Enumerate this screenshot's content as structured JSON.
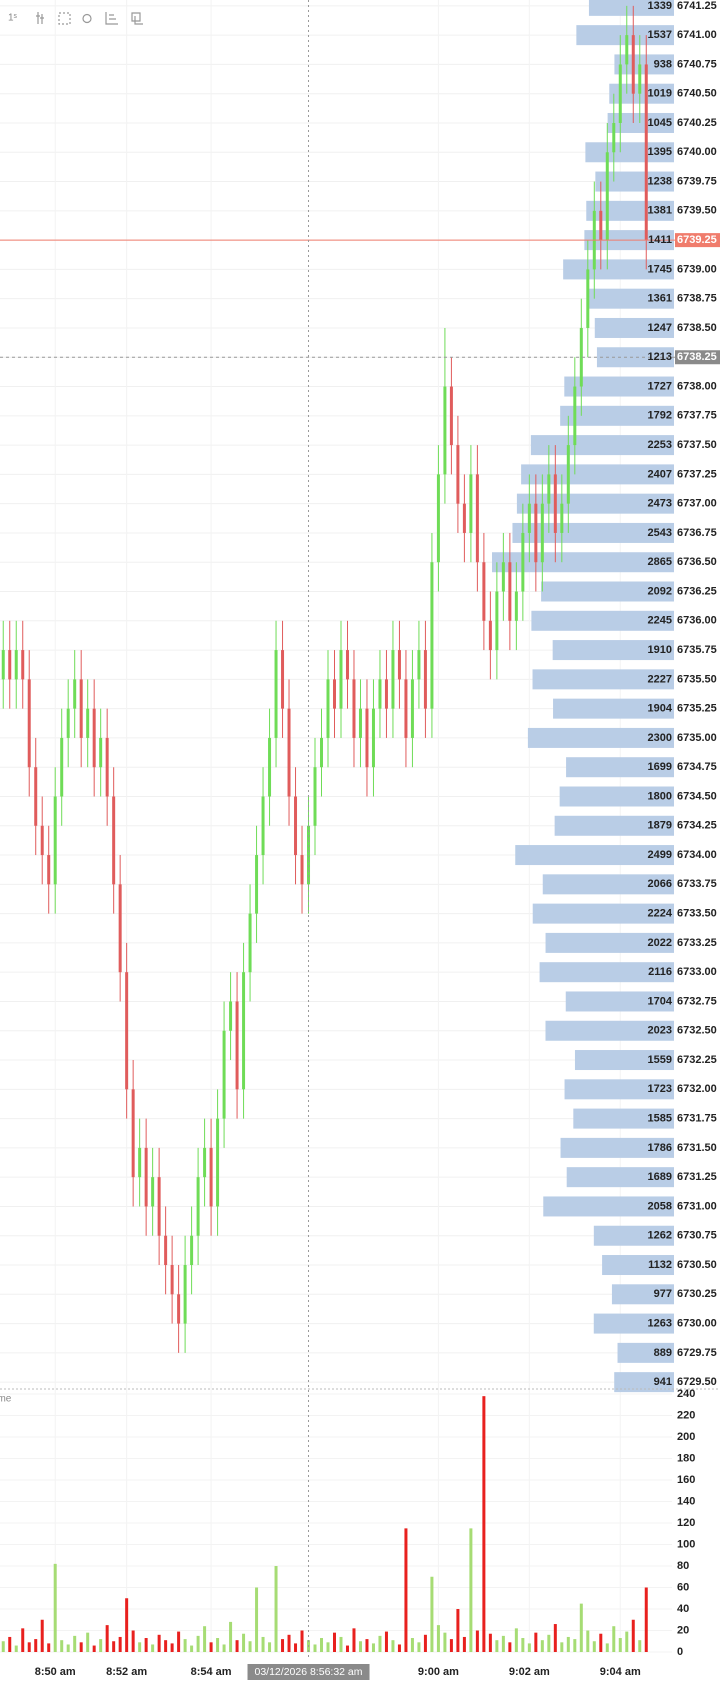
{
  "chart_data": {
    "type": "candlestick",
    "interval": "1ˢ",
    "up_color": "#6fdc57",
    "down_color": "#e05c5c",
    "candles": [
      [
        6735.5,
        6736.0,
        6735.25,
        6735.75
      ],
      [
        6735.75,
        6736.0,
        6735.25,
        6735.5
      ],
      [
        6735.5,
        6736.0,
        6735.25,
        6735.75
      ],
      [
        6735.75,
        6736.0,
        6735.25,
        6735.5
      ],
      [
        6735.5,
        6735.75,
        6734.5,
        6734.75
      ],
      [
        6734.75,
        6735.0,
        6734.0,
        6734.25
      ],
      [
        6734.25,
        6734.5,
        6733.75,
        6734.0
      ],
      [
        6734.0,
        6734.25,
        6733.5,
        6733.75
      ],
      [
        6733.75,
        6734.75,
        6733.5,
        6734.5
      ],
      [
        6734.5,
        6735.25,
        6734.25,
        6735.0
      ],
      [
        6735.0,
        6735.5,
        6734.75,
        6735.25
      ],
      [
        6735.25,
        6735.75,
        6735.0,
        6735.5
      ],
      [
        6735.5,
        6735.75,
        6734.75,
        6735.0
      ],
      [
        6735.0,
        6735.5,
        6734.75,
        6735.25
      ],
      [
        6735.25,
        6735.5,
        6734.5,
        6734.75
      ],
      [
        6734.75,
        6735.25,
        6734.5,
        6735.0
      ],
      [
        6735.0,
        6735.25,
        6734.25,
        6734.5
      ],
      [
        6734.5,
        6734.75,
        6733.5,
        6733.75
      ],
      [
        6733.75,
        6734.0,
        6732.75,
        6733.0
      ],
      [
        6733.0,
        6733.25,
        6731.75,
        6732.0
      ],
      [
        6732.0,
        6732.25,
        6731.0,
        6731.25
      ],
      [
        6731.25,
        6731.75,
        6731.0,
        6731.5
      ],
      [
        6731.5,
        6731.75,
        6730.75,
        6731.0
      ],
      [
        6731.0,
        6731.5,
        6730.75,
        6731.25
      ],
      [
        6731.25,
        6731.5,
        6730.5,
        6730.75
      ],
      [
        6730.75,
        6731.0,
        6730.25,
        6730.5
      ],
      [
        6730.5,
        6730.75,
        6730.0,
        6730.25
      ],
      [
        6730.25,
        6730.5,
        6729.75,
        6730.0
      ],
      [
        6730.0,
        6730.75,
        6729.75,
        6730.5
      ],
      [
        6730.5,
        6731.0,
        6730.25,
        6730.75
      ],
      [
        6730.75,
        6731.5,
        6730.5,
        6731.25
      ],
      [
        6731.25,
        6731.75,
        6731.0,
        6731.5
      ],
      [
        6731.5,
        6731.75,
        6730.75,
        6731.0
      ],
      [
        6731.0,
        6732.0,
        6730.75,
        6731.75
      ],
      [
        6731.75,
        6732.75,
        6731.5,
        6732.5
      ],
      [
        6732.5,
        6733.0,
        6732.25,
        6732.75
      ],
      [
        6732.75,
        6733.0,
        6731.75,
        6732.0
      ],
      [
        6732.0,
        6733.25,
        6731.75,
        6733.0
      ],
      [
        6733.0,
        6733.75,
        6732.75,
        6733.5
      ],
      [
        6733.5,
        6734.25,
        6733.25,
        6734.0
      ],
      [
        6734.0,
        6734.75,
        6733.75,
        6734.5
      ],
      [
        6734.5,
        6735.25,
        6734.25,
        6735.0
      ],
      [
        6735.0,
        6736.0,
        6734.75,
        6735.75
      ],
      [
        6735.75,
        6736.0,
        6735.0,
        6735.25
      ],
      [
        6735.25,
        6735.5,
        6734.25,
        6734.5
      ],
      [
        6734.5,
        6734.75,
        6733.75,
        6734.0
      ],
      [
        6734.0,
        6734.25,
        6733.5,
        6733.75
      ],
      [
        6733.75,
        6734.5,
        6733.5,
        6734.25
      ],
      [
        6734.25,
        6735.0,
        6734.0,
        6734.75
      ],
      [
        6734.75,
        6735.25,
        6734.5,
        6735.0
      ],
      [
        6735.0,
        6735.75,
        6734.75,
        6735.5
      ],
      [
        6735.5,
        6735.75,
        6735.0,
        6735.25
      ],
      [
        6735.25,
        6736.0,
        6735.0,
        6735.75
      ],
      [
        6735.75,
        6736.0,
        6735.25,
        6735.5
      ],
      [
        6735.5,
        6735.75,
        6734.75,
        6735.0
      ],
      [
        6735.0,
        6735.5,
        6734.75,
        6735.25
      ],
      [
        6735.25,
        6735.5,
        6734.5,
        6734.75
      ],
      [
        6734.75,
        6735.5,
        6734.5,
        6735.25
      ],
      [
        6735.25,
        6735.75,
        6735.0,
        6735.5
      ],
      [
        6735.5,
        6735.75,
        6735.0,
        6735.25
      ],
      [
        6735.25,
        6736.0,
        6735.0,
        6735.75
      ],
      [
        6735.75,
        6736.0,
        6735.25,
        6735.5
      ],
      [
        6735.5,
        6735.75,
        6734.75,
        6735.0
      ],
      [
        6735.0,
        6735.75,
        6734.75,
        6735.5
      ],
      [
        6735.5,
        6736.0,
        6735.25,
        6735.75
      ],
      [
        6735.75,
        6736.0,
        6735.0,
        6735.25
      ],
      [
        6735.25,
        6736.75,
        6735.0,
        6736.5
      ],
      [
        6736.5,
        6737.5,
        6736.25,
        6737.25
      ],
      [
        6737.25,
        6738.5,
        6737.0,
        6738.0
      ],
      [
        6738.0,
        6738.25,
        6737.25,
        6737.5
      ],
      [
        6737.5,
        6737.75,
        6736.75,
        6737.0
      ],
      [
        6737.0,
        6737.25,
        6736.5,
        6736.75
      ],
      [
        6736.75,
        6737.5,
        6736.5,
        6737.25
      ],
      [
        6737.25,
        6737.5,
        6736.25,
        6736.5
      ],
      [
        6736.5,
        6736.75,
        6735.75,
        6736.0
      ],
      [
        6736.0,
        6736.25,
        6735.5,
        6735.75
      ],
      [
        6735.75,
        6736.5,
        6735.5,
        6736.25
      ],
      [
        6736.25,
        6736.75,
        6736.0,
        6736.5
      ],
      [
        6736.5,
        6736.75,
        6735.75,
        6736.0
      ],
      [
        6736.0,
        6736.5,
        6735.75,
        6736.25
      ],
      [
        6736.25,
        6737.0,
        6736.0,
        6736.75
      ],
      [
        6736.75,
        6737.25,
        6736.5,
        6737.0
      ],
      [
        6737.0,
        6737.25,
        6736.25,
        6736.5
      ],
      [
        6736.5,
        6737.25,
        6736.25,
        6737.0
      ],
      [
        6737.0,
        6737.5,
        6736.75,
        6737.25
      ],
      [
        6737.25,
        6737.5,
        6736.5,
        6736.75
      ],
      [
        6736.75,
        6737.25,
        6736.5,
        6737.0
      ],
      [
        6737.0,
        6737.75,
        6736.75,
        6737.5
      ],
      [
        6737.5,
        6738.25,
        6737.25,
        6738.0
      ],
      [
        6738.0,
        6738.75,
        6737.75,
        6738.5
      ],
      [
        6738.5,
        6739.25,
        6738.25,
        6739.0
      ],
      [
        6739.0,
        6739.75,
        6738.75,
        6739.5
      ],
      [
        6739.5,
        6739.75,
        6739.0,
        6739.25
      ],
      [
        6739.25,
        6740.25,
        6739.0,
        6740.0
      ],
      [
        6740.0,
        6740.5,
        6739.75,
        6740.25
      ],
      [
        6740.25,
        6741.0,
        6740.0,
        6740.75
      ],
      [
        6740.75,
        6741.25,
        6740.5,
        6741.0
      ],
      [
        6741.0,
        6741.25,
        6740.25,
        6740.5
      ],
      [
        6740.5,
        6741.0,
        6740.25,
        6740.75
      ],
      [
        6740.75,
        6741.0,
        6739.0,
        6739.25
      ]
    ],
    "xlim": [
      -0.5,
      100.5
    ],
    "xticks": [
      {
        "value": 8,
        "label": "8:50 am"
      },
      {
        "value": 19,
        "label": "8:52 am"
      },
      {
        "value": 32,
        "label": "8:54 am"
      },
      {
        "value": 67,
        "label": "9:00 am"
      },
      {
        "value": 81,
        "label": "9:02 am"
      },
      {
        "value": 95,
        "label": "9:04 am"
      }
    ],
    "crosshair": {
      "value": 47,
      "label": "03/12/2026 8:56:32 am",
      "price": 6738.25
    },
    "last_price": 6739.25,
    "ylim": [
      6729.45,
      6741.3
    ],
    "yticks": [
      {
        "value": 6741.25,
        "label": "6741.25"
      },
      {
        "value": 6741,
        "label": "6741.00"
      },
      {
        "value": 6740.75,
        "label": "6740.75"
      },
      {
        "value": 6740.5,
        "label": "6740.50"
      },
      {
        "value": 6740.25,
        "label": "6740.25"
      },
      {
        "value": 6740,
        "label": "6740.00"
      },
      {
        "value": 6739.75,
        "label": "6739.75"
      },
      {
        "value": 6739.5,
        "label": "6739.50"
      },
      {
        "value": 6739.25,
        "label": "6739.25"
      },
      {
        "value": 6739,
        "label": "6739.00"
      },
      {
        "value": 6738.75,
        "label": "6738.75"
      },
      {
        "value": 6738.5,
        "label": "6738.50"
      },
      {
        "value": 6738.25,
        "label": "6738.25"
      },
      {
        "value": 6738,
        "label": "6738.00"
      },
      {
        "value": 6737.75,
        "label": "6737.75"
      },
      {
        "value": 6737.5,
        "label": "6737.50"
      },
      {
        "value": 6737.25,
        "label": "6737.25"
      },
      {
        "value": 6737,
        "label": "6737.00"
      },
      {
        "value": 6736.75,
        "label": "6736.75"
      },
      {
        "value": 6736.5,
        "label": "6736.50"
      },
      {
        "value": 6736.25,
        "label": "6736.25"
      },
      {
        "value": 6736,
        "label": "6736.00"
      },
      {
        "value": 6735.75,
        "label": "6735.75"
      },
      {
        "value": 6735.5,
        "label": "6735.50"
      },
      {
        "value": 6735.25,
        "label": "6735.25"
      },
      {
        "value": 6735,
        "label": "6735.00"
      },
      {
        "value": 6734.75,
        "label": "6734.75"
      },
      {
        "value": 6734.5,
        "label": "6734.50"
      },
      {
        "value": 6734.25,
        "label": "6734.25"
      },
      {
        "value": 6734,
        "label": "6734.00"
      },
      {
        "value": 6733.75,
        "label": "6733.75"
      },
      {
        "value": 6733.5,
        "label": "6733.50"
      },
      {
        "value": 6733.25,
        "label": "6733.25"
      },
      {
        "value": 6733,
        "label": "6733.00"
      },
      {
        "value": 6732.75,
        "label": "6732.75"
      },
      {
        "value": 6732.5,
        "label": "6732.50"
      },
      {
        "value": 6732.25,
        "label": "6732.25"
      },
      {
        "value": 6732,
        "label": "6732.00"
      },
      {
        "value": 6731.75,
        "label": "6731.75"
      },
      {
        "value": 6731.5,
        "label": "6731.50"
      },
      {
        "value": 6731.25,
        "label": "6731.25"
      },
      {
        "value": 6731,
        "label": "6731.00"
      },
      {
        "value": 6730.75,
        "label": "6730.75"
      },
      {
        "value": 6730.5,
        "label": "6730.50"
      },
      {
        "value": 6730.25,
        "label": "6730.25"
      },
      {
        "value": 6730,
        "label": "6730.00"
      },
      {
        "value": 6729.75,
        "label": "6729.75"
      },
      {
        "value": 6729.5,
        "label": "6729.50"
      }
    ],
    "volume_profile": {
      "color": "#b9cde6",
      "values": [
        1339,
        1537,
        938,
        1019,
        1045,
        1395,
        1238,
        1381,
        1411,
        1745,
        1361,
        1247,
        1213,
        1727,
        1792,
        2253,
        2407,
        2473,
        2543,
        2865,
        2092,
        2245,
        1910,
        2227,
        1904,
        2300,
        1699,
        1800,
        1879,
        2499,
        2066,
        2224,
        2022,
        2116,
        1704,
        2023,
        1559,
        1723,
        1585,
        1786,
        1689,
        2058,
        1262,
        1132,
        977,
        1263,
        889,
        941
      ]
    },
    "volume": {
      "title": "Volume",
      "up_color": "#a6dc74",
      "down_color": "#e8201e",
      "ylim": [
        0,
        240
      ],
      "yticks": [
        0,
        20,
        40,
        60,
        80,
        100,
        120,
        140,
        160,
        180,
        200,
        220,
        240
      ],
      "values": [
        10,
        14,
        6,
        22,
        9,
        12,
        30,
        8,
        82,
        11,
        7,
        15,
        9,
        18,
        6,
        12,
        25,
        10,
        14,
        50,
        20,
        9,
        13,
        7,
        16,
        11,
        8,
        19,
        12,
        6,
        15,
        24,
        9,
        13,
        7,
        28,
        11,
        17,
        10,
        60,
        14,
        9,
        80,
        12,
        16,
        8,
        20,
        11,
        7,
        13,
        9,
        18,
        14,
        6,
        22,
        10,
        12,
        8,
        15,
        19,
        11,
        7,
        115,
        13,
        9,
        16,
        70,
        25,
        18,
        12,
        40,
        14,
        115,
        20,
        238,
        17,
        11,
        15,
        9,
        22,
        13,
        8,
        18,
        11,
        16,
        26,
        9,
        14,
        12,
        45,
        20,
        10,
        17,
        8,
        24,
        13,
        19,
        30,
        11,
        60
      ]
    }
  }
}
